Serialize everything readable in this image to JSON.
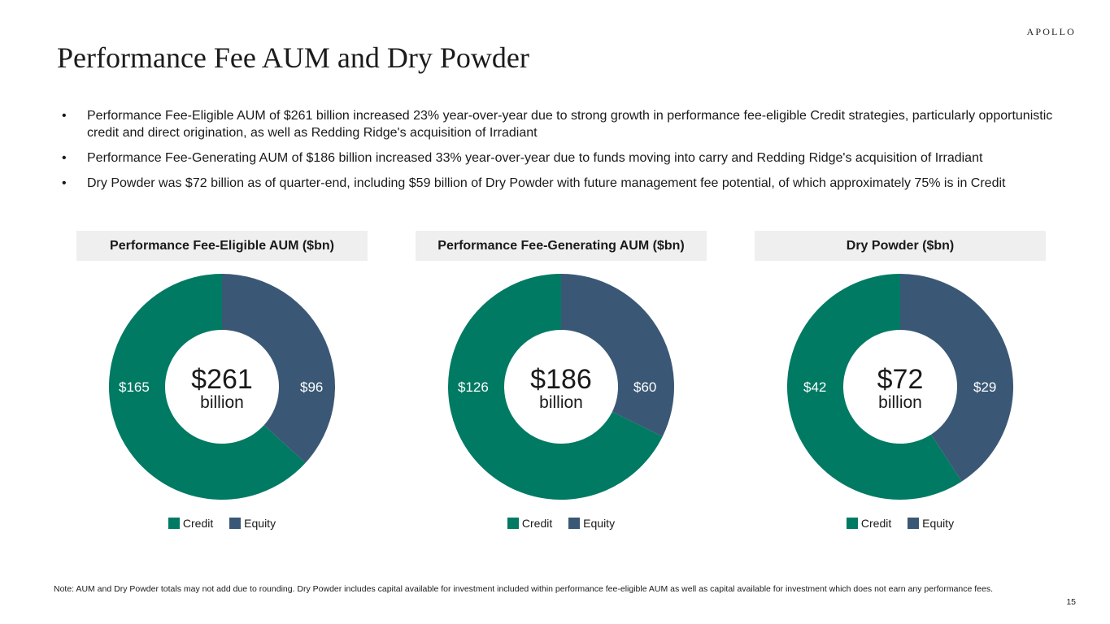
{
  "header": {
    "logo": "APOLLO",
    "title": "Performance Fee AUM and Dry Powder"
  },
  "bullets": [
    {
      "marker": "•",
      "text": "Performance Fee-Eligible AUM of $261 billion increased 23% year-over-year due to strong growth in performance fee-eligible Credit strategies, particularly opportunistic credit and direct origination, as well as Redding Ridge's acquisition of Irradiant"
    },
    {
      "marker": "•",
      "text": "Performance Fee-Generating AUM of $186 billion increased 33% year-over-year due to funds moving into carry and Redding Ridge's acquisition of Irradiant"
    },
    {
      "marker": "•",
      "text": "Dry Powder was $72 billion as of quarter-end, including $59 billion of Dry Powder with future management fee potential, of which approximately 75% is in Credit"
    }
  ],
  "colors": {
    "credit": "#007a63",
    "equity": "#3a5875",
    "header_bg": "#efefef"
  },
  "chart_data": [
    {
      "type": "pie",
      "title": "Performance Fee-Eligible AUM ($bn)",
      "center_value": "$261",
      "center_unit": "billion",
      "series": [
        {
          "name": "Credit",
          "value": 165,
          "label": "$165"
        },
        {
          "name": "Equity",
          "value": 96,
          "label": "$96"
        }
      ],
      "legend": [
        "Credit",
        "Equity"
      ]
    },
    {
      "type": "pie",
      "title": "Performance Fee-Generating AUM ($bn)",
      "center_value": "$186",
      "center_unit": "billion",
      "series": [
        {
          "name": "Credit",
          "value": 126,
          "label": "$126"
        },
        {
          "name": "Equity",
          "value": 60,
          "label": "$60"
        }
      ],
      "legend": [
        "Credit",
        "Equity"
      ]
    },
    {
      "type": "pie",
      "title": "Dry Powder ($bn)",
      "center_value": "$72",
      "center_unit": "billion",
      "series": [
        {
          "name": "Credit",
          "value": 42,
          "label": "$42"
        },
        {
          "name": "Equity",
          "value": 29,
          "label": "$29"
        }
      ],
      "legend": [
        "Credit",
        "Equity"
      ]
    }
  ],
  "footer": {
    "note": "Note: AUM and Dry Powder totals may not add due to rounding. Dry Powder includes capital available for investment included within performance fee-eligible AUM as well as capital available for investment which does not earn any performance fees.",
    "page_number": "15"
  }
}
